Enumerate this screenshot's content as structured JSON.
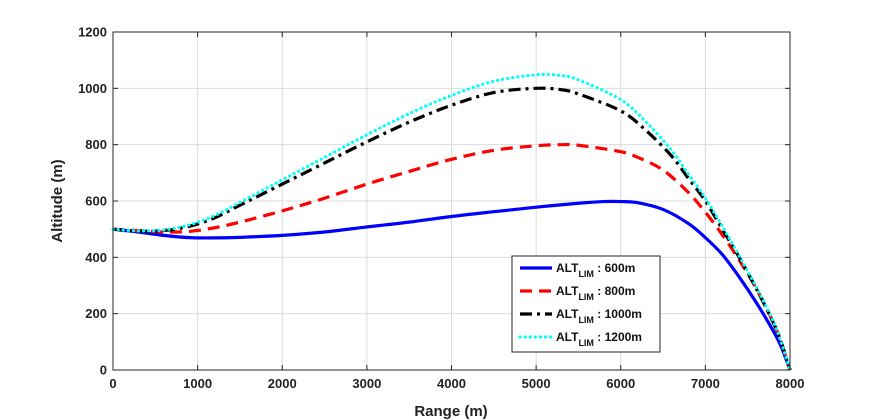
{
  "chart_data": {
    "type": "line",
    "title": "",
    "xlabel": "Range (m)",
    "ylabel": "Altitude (m)",
    "xlim": [
      0,
      8000
    ],
    "ylim": [
      0,
      1200
    ],
    "xticks": [
      0,
      1000,
      2000,
      3000,
      4000,
      5000,
      6000,
      7000,
      8000
    ],
    "yticks": [
      0,
      200,
      400,
      600,
      800,
      1000,
      1200
    ],
    "xtick_labels": [
      "0",
      "1000",
      "2000",
      "3000",
      "4000",
      "5000",
      "6000",
      "7000",
      "8000"
    ],
    "ytick_labels": [
      "0",
      "200",
      "400",
      "600",
      "800",
      "1000",
      "1200"
    ],
    "grid": true,
    "legend_position": "bottom-right",
    "series": [
      {
        "legend_main": "ALT",
        "legend_sub": "LIM",
        "legend_value": " : 600m",
        "color": "#0000ff",
        "line_style": "solid",
        "x": [
          0,
          300,
          600,
          900,
          1200,
          1500,
          2000,
          2500,
          3000,
          3500,
          4000,
          4500,
          5000,
          5500,
          5800,
          6000,
          6200,
          6500,
          6800,
          7000,
          7200,
          7400,
          7600,
          7800,
          7900,
          8000
        ],
        "y": [
          500,
          490,
          478,
          470,
          469,
          471,
          478,
          490,
          508,
          525,
          545,
          562,
          578,
          592,
          598,
          598,
          594,
          570,
          520,
          470,
          410,
          330,
          240,
          140,
          80,
          0
        ]
      },
      {
        "legend_main": "ALT",
        "legend_sub": "LIM",
        "legend_value": " : 800m",
        "color": "#ff0000",
        "line_style": "dashed",
        "x": [
          0,
          300,
          600,
          900,
          1200,
          1500,
          2000,
          2500,
          3000,
          3500,
          4000,
          4500,
          5000,
          5300,
          5500,
          6000,
          6200,
          6500,
          6800,
          7000,
          7200,
          7400,
          7600,
          7800,
          7900,
          8000
        ],
        "y": [
          500,
          495,
          490,
          492,
          505,
          525,
          565,
          610,
          660,
          705,
          748,
          780,
          796,
          800,
          798,
          775,
          755,
          710,
          630,
          560,
          480,
          390,
          290,
          170,
          95,
          0
        ]
      },
      {
        "legend_main": "ALT",
        "legend_sub": "LIM",
        "legend_value": " : 1000m",
        "color": "#000000",
        "line_style": "dashdot",
        "x": [
          0,
          300,
          600,
          900,
          1200,
          1500,
          2000,
          2500,
          3000,
          3500,
          4000,
          4500,
          5000,
          5300,
          5500,
          6000,
          6300,
          6600,
          6800,
          7000,
          7200,
          7400,
          7600,
          7800,
          7900,
          8000
        ],
        "y": [
          500,
          493,
          495,
          510,
          540,
          585,
          660,
          735,
          810,
          880,
          940,
          985,
          1000,
          995,
          980,
          920,
          850,
          760,
          680,
          600,
          500,
          400,
          290,
          170,
          95,
          0
        ]
      },
      {
        "legend_main": "ALT",
        "legend_sub": "LIM",
        "legend_value": " : 1200m",
        "color": "#00ffff",
        "line_style": "dotted",
        "x": [
          0,
          300,
          600,
          900,
          1200,
          1500,
          2000,
          2500,
          3000,
          3500,
          4000,
          4500,
          5000,
          5300,
          5500,
          6000,
          6300,
          6600,
          6800,
          7000,
          7200,
          7400,
          7600,
          7800,
          7900,
          8000
        ],
        "y": [
          500,
          494,
          497,
          515,
          548,
          595,
          675,
          755,
          835,
          910,
          975,
          1025,
          1048,
          1045,
          1030,
          960,
          880,
          780,
          695,
          610,
          510,
          405,
          295,
          175,
          95,
          0
        ]
      }
    ]
  }
}
